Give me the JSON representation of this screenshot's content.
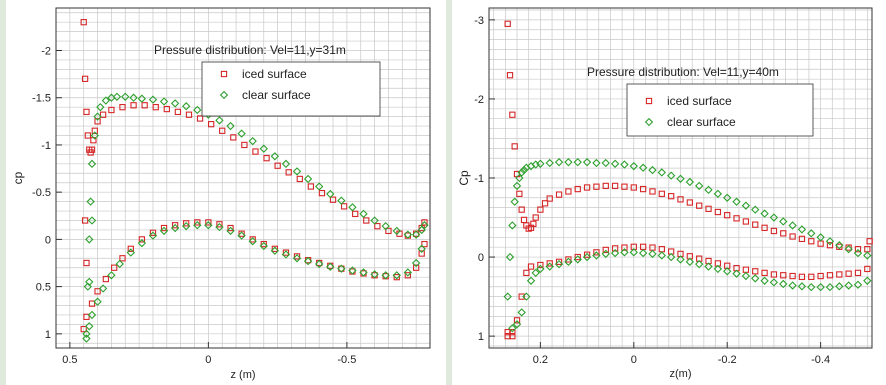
{
  "chart_data": [
    {
      "type": "scatter",
      "title": "Pressure distribution: Vel=11,y=31m",
      "xlabel": "z (m)",
      "ylabel": "cp",
      "xlim": [
        0.55,
        -0.8
      ],
      "ylim": [
        1.15,
        -2.45
      ],
      "y_inverted": true,
      "x_inverted": true,
      "grid": true,
      "legend_position": "top-right",
      "xticks": [
        {
          "value": 0.5,
          "label": "0.5"
        },
        {
          "value": 0,
          "label": "0"
        },
        {
          "value": -0.5,
          "label": "-0.5"
        }
      ],
      "yticks": [
        {
          "value": -2,
          "label": "-2"
        },
        {
          "value": -1.5,
          "label": "-1.5"
        },
        {
          "value": -1,
          "label": "-1"
        },
        {
          "value": -0.5,
          "label": "-0.5"
        },
        {
          "value": 0,
          "label": "0"
        },
        {
          "value": 0.5,
          "label": "0.5"
        },
        {
          "value": 1,
          "label": "1"
        }
      ],
      "series": [
        {
          "name": "iced surface",
          "color": "#d62728",
          "marker": "square",
          "x": [
            0.45,
            0.445,
            0.44,
            0.435,
            0.43,
            0.425,
            0.42,
            0.415,
            0.41,
            0.4,
            0.38,
            0.35,
            0.31,
            0.27,
            0.23,
            0.19,
            0.15,
            0.11,
            0.07,
            0.03,
            -0.01,
            -0.05,
            -0.09,
            -0.13,
            -0.17,
            -0.21,
            -0.25,
            -0.29,
            -0.33,
            -0.37,
            -0.41,
            -0.45,
            -0.49,
            -0.53,
            -0.57,
            -0.61,
            -0.65,
            -0.69,
            -0.72,
            -0.75,
            -0.77,
            -0.78,
            0.45,
            0.44,
            0.42,
            0.4,
            0.37,
            0.34,
            0.31,
            0.28,
            0.24,
            0.2,
            0.16,
            0.12,
            0.08,
            0.04,
            0.0,
            -0.04,
            -0.08,
            -0.12,
            -0.16,
            -0.2,
            -0.24,
            -0.28,
            -0.32,
            -0.36,
            -0.4,
            -0.44,
            -0.48,
            -0.52,
            -0.56,
            -0.6,
            -0.64,
            -0.68,
            -0.72,
            -0.75,
            -0.77,
            -0.78,
            0.445,
            0.44
          ],
          "y": [
            -2.3,
            -1.7,
            -1.35,
            -1.1,
            -0.95,
            -0.92,
            -0.95,
            -1.05,
            -1.15,
            -1.25,
            -1.32,
            -1.37,
            -1.4,
            -1.42,
            -1.42,
            -1.4,
            -1.38,
            -1.35,
            -1.32,
            -1.28,
            -1.22,
            -1.15,
            -1.08,
            -1.0,
            -0.93,
            -0.86,
            -0.78,
            -0.71,
            -0.64,
            -0.56,
            -0.49,
            -0.42,
            -0.35,
            -0.27,
            -0.2,
            -0.14,
            -0.09,
            -0.06,
            -0.04,
            -0.06,
            -0.12,
            -0.18,
            0.95,
            0.82,
            0.68,
            0.55,
            0.42,
            0.3,
            0.2,
            0.1,
            0.0,
            -0.07,
            -0.12,
            -0.15,
            -0.17,
            -0.18,
            -0.18,
            -0.16,
            -0.12,
            -0.06,
            0.0,
            0.05,
            0.1,
            0.14,
            0.18,
            0.22,
            0.25,
            0.28,
            0.31,
            0.34,
            0.36,
            0.38,
            0.39,
            0.4,
            0.38,
            0.3,
            0.15,
            0.05,
            -0.2,
            0.25
          ]
        },
        {
          "name": "clear surface",
          "color": "#2ca02c",
          "marker": "diamond",
          "x": [
            0.44,
            0.435,
            0.43,
            0.425,
            0.42,
            0.41,
            0.4,
            0.39,
            0.37,
            0.35,
            0.33,
            0.3,
            0.27,
            0.24,
            0.2,
            0.16,
            0.12,
            0.08,
            0.04,
            0.0,
            -0.04,
            -0.08,
            -0.12,
            -0.16,
            -0.2,
            -0.24,
            -0.28,
            -0.32,
            -0.36,
            -0.4,
            -0.44,
            -0.48,
            -0.52,
            -0.56,
            -0.6,
            -0.64,
            -0.68,
            -0.72,
            -0.75,
            -0.77,
            -0.78,
            0.44,
            0.43,
            0.42,
            0.4,
            0.38,
            0.35,
            0.32,
            0.28,
            0.24,
            0.2,
            0.16,
            0.12,
            0.08,
            0.04,
            0.0,
            -0.04,
            -0.08,
            -0.12,
            -0.16,
            -0.2,
            -0.24,
            -0.28,
            -0.32,
            -0.36,
            -0.4,
            -0.44,
            -0.48,
            -0.52,
            -0.56,
            -0.6,
            -0.64,
            -0.68,
            -0.72,
            -0.75,
            -0.77,
            0.43,
            0.42
          ],
          "y": [
            1.0,
            0.5,
            0.0,
            -0.4,
            -0.8,
            -1.1,
            -1.3,
            -1.4,
            -1.47,
            -1.5,
            -1.51,
            -1.51,
            -1.5,
            -1.49,
            -1.48,
            -1.46,
            -1.44,
            -1.41,
            -1.37,
            -1.32,
            -1.26,
            -1.2,
            -1.12,
            -1.04,
            -0.96,
            -0.88,
            -0.8,
            -0.72,
            -0.64,
            -0.56,
            -0.48,
            -0.41,
            -0.34,
            -0.27,
            -0.2,
            -0.14,
            -0.09,
            -0.05,
            -0.05,
            -0.1,
            -0.15,
            1.05,
            0.92,
            0.8,
            0.66,
            0.52,
            0.38,
            0.26,
            0.14,
            0.04,
            -0.04,
            -0.09,
            -0.12,
            -0.14,
            -0.15,
            -0.15,
            -0.13,
            -0.09,
            -0.04,
            0.02,
            0.07,
            0.12,
            0.16,
            0.2,
            0.23,
            0.26,
            0.29,
            0.31,
            0.33,
            0.35,
            0.37,
            0.38,
            0.38,
            0.35,
            0.25,
            0.1,
            0.45,
            -0.2
          ]
        }
      ]
    },
    {
      "type": "scatter",
      "title": "Pressure distribution: Vel=11,y=40m",
      "xlabel": "z(m)",
      "ylabel": "Cp",
      "xlim": [
        0.31,
        -0.51
      ],
      "ylim": [
        1.15,
        -3.15
      ],
      "y_inverted": true,
      "x_inverted": true,
      "grid": true,
      "legend_position": "top-right",
      "xticks": [
        {
          "value": 0.2,
          "label": "0.2"
        },
        {
          "value": 0,
          "label": "0"
        },
        {
          "value": -0.2,
          "label": "-0.2"
        },
        {
          "value": -0.4,
          "label": "-0.4"
        }
      ],
      "yticks": [
        {
          "value": -3,
          "label": "-3"
        },
        {
          "value": -2,
          "label": "-2"
        },
        {
          "value": -1,
          "label": "-1"
        },
        {
          "value": 0,
          "label": "0"
        },
        {
          "value": 1,
          "label": "1"
        }
      ],
      "series": [
        {
          "name": "iced surface",
          "color": "#d62728",
          "marker": "square",
          "x": [
            0.27,
            0.265,
            0.26,
            0.255,
            0.25,
            0.245,
            0.24,
            0.235,
            0.23,
            0.225,
            0.22,
            0.215,
            0.21,
            0.2,
            0.19,
            0.18,
            0.16,
            0.14,
            0.12,
            0.1,
            0.08,
            0.06,
            0.04,
            0.02,
            0.0,
            -0.02,
            -0.04,
            -0.06,
            -0.08,
            -0.1,
            -0.12,
            -0.14,
            -0.16,
            -0.18,
            -0.2,
            -0.22,
            -0.24,
            -0.26,
            -0.28,
            -0.3,
            -0.32,
            -0.34,
            -0.36,
            -0.38,
            -0.4,
            -0.42,
            -0.44,
            -0.46,
            -0.48,
            -0.5,
            -0.505,
            0.27,
            0.26,
            0.25,
            0.24,
            0.23,
            0.22,
            0.2,
            0.18,
            0.16,
            0.14,
            0.12,
            0.1,
            0.08,
            0.06,
            0.04,
            0.02,
            0.0,
            -0.02,
            -0.04,
            -0.06,
            -0.08,
            -0.1,
            -0.12,
            -0.14,
            -0.16,
            -0.18,
            -0.2,
            -0.22,
            -0.24,
            -0.26,
            -0.28,
            -0.3,
            -0.32,
            -0.34,
            -0.36,
            -0.38,
            -0.4,
            -0.42,
            -0.44,
            -0.46,
            -0.48,
            -0.5,
            0.27,
            0.26
          ],
          "y": [
            -2.95,
            -2.3,
            -1.8,
            -1.4,
            -1.05,
            -0.8,
            -0.6,
            -0.47,
            -0.4,
            -0.36,
            -0.37,
            -0.42,
            -0.5,
            -0.6,
            -0.68,
            -0.74,
            -0.79,
            -0.83,
            -0.86,
            -0.88,
            -0.89,
            -0.9,
            -0.9,
            -0.89,
            -0.88,
            -0.86,
            -0.83,
            -0.8,
            -0.77,
            -0.73,
            -0.69,
            -0.65,
            -0.61,
            -0.57,
            -0.53,
            -0.49,
            -0.45,
            -0.41,
            -0.37,
            -0.33,
            -0.3,
            -0.26,
            -0.23,
            -0.2,
            -0.17,
            -0.15,
            -0.13,
            -0.12,
            -0.1,
            -0.1,
            -0.2,
            1.0,
            0.95,
            0.8,
            0.5,
            0.2,
            0.12,
            0.1,
            0.08,
            0.06,
            0.03,
            0.0,
            -0.03,
            -0.06,
            -0.09,
            -0.11,
            -0.12,
            -0.13,
            -0.13,
            -0.12,
            -0.1,
            -0.07,
            -0.04,
            -0.01,
            0.02,
            0.05,
            0.08,
            0.11,
            0.14,
            0.16,
            0.18,
            0.2,
            0.22,
            0.23,
            0.24,
            0.25,
            0.25,
            0.24,
            0.23,
            0.22,
            0.21,
            0.2,
            0.15,
            0.95,
            1.0
          ]
        },
        {
          "name": "clear surface",
          "color": "#2ca02c",
          "marker": "diamond",
          "x": [
            0.27,
            0.265,
            0.26,
            0.255,
            0.25,
            0.245,
            0.24,
            0.235,
            0.23,
            0.22,
            0.21,
            0.2,
            0.18,
            0.16,
            0.14,
            0.12,
            0.1,
            0.08,
            0.06,
            0.04,
            0.02,
            0.0,
            -0.02,
            -0.04,
            -0.06,
            -0.08,
            -0.1,
            -0.12,
            -0.14,
            -0.16,
            -0.18,
            -0.2,
            -0.22,
            -0.24,
            -0.26,
            -0.28,
            -0.3,
            -0.32,
            -0.34,
            -0.36,
            -0.38,
            -0.4,
            -0.42,
            -0.44,
            -0.46,
            -0.48,
            -0.5,
            0.26,
            0.25,
            0.24,
            0.23,
            0.22,
            0.21,
            0.2,
            0.18,
            0.16,
            0.14,
            0.12,
            0.1,
            0.08,
            0.06,
            0.04,
            0.02,
            0.0,
            -0.02,
            -0.04,
            -0.06,
            -0.08,
            -0.1,
            -0.12,
            -0.14,
            -0.16,
            -0.18,
            -0.2,
            -0.22,
            -0.24,
            -0.26,
            -0.28,
            -0.3,
            -0.32,
            -0.34,
            -0.36,
            -0.38,
            -0.4,
            -0.42,
            -0.44,
            -0.46,
            -0.48,
            -0.5
          ],
          "y": [
            0.5,
            0.0,
            -0.4,
            -0.7,
            -0.9,
            -1.0,
            -1.07,
            -1.1,
            -1.13,
            -1.15,
            -1.17,
            -1.18,
            -1.19,
            -1.2,
            -1.2,
            -1.2,
            -1.2,
            -1.19,
            -1.19,
            -1.18,
            -1.17,
            -1.15,
            -1.13,
            -1.1,
            -1.07,
            -1.03,
            -0.99,
            -0.95,
            -0.9,
            -0.85,
            -0.8,
            -0.75,
            -0.7,
            -0.65,
            -0.6,
            -0.55,
            -0.5,
            -0.45,
            -0.4,
            -0.35,
            -0.3,
            -0.25,
            -0.2,
            -0.15,
            -0.1,
            -0.05,
            -0.02,
            0.9,
            0.85,
            0.7,
            0.5,
            0.3,
            0.2,
            0.15,
            0.12,
            0.09,
            0.06,
            0.03,
            0.0,
            -0.02,
            -0.04,
            -0.05,
            -0.06,
            -0.06,
            -0.05,
            -0.04,
            -0.02,
            0.0,
            0.03,
            0.06,
            0.09,
            0.12,
            0.15,
            0.18,
            0.21,
            0.24,
            0.27,
            0.3,
            0.32,
            0.34,
            0.36,
            0.37,
            0.38,
            0.38,
            0.38,
            0.37,
            0.36,
            0.35,
            0.3
          ]
        }
      ]
    }
  ]
}
